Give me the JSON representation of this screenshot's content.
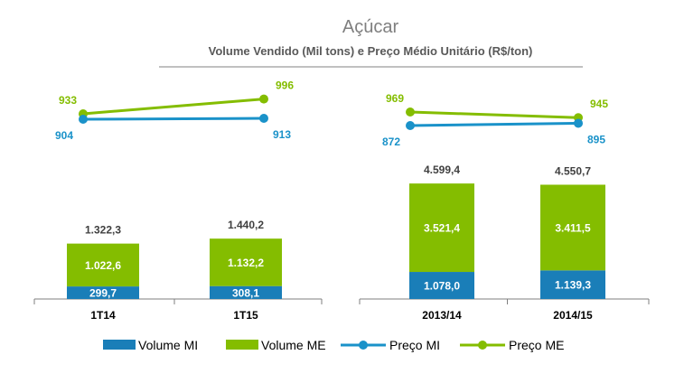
{
  "title": "Açúcar",
  "subtitle": "Volume Vendido (Mil tons) e Preço Médio Unitário (R$/ton)",
  "colors": {
    "volume_mi": "#1a7eb8",
    "volume_me": "#84bd00",
    "preco_mi": "#1a92c9",
    "preco_me": "#84bd00",
    "label_dark": "#404040",
    "axis": "#7f7f7f"
  },
  "legend": [
    {
      "label": "Volume MI",
      "kind": "bar",
      "color": "#1a7eb8"
    },
    {
      "label": "Volume ME",
      "kind": "bar",
      "color": "#84bd00"
    },
    {
      "label": "Preço MI",
      "kind": "line",
      "color": "#1a92c9"
    },
    {
      "label": "Preço ME",
      "kind": "line",
      "color": "#84bd00"
    }
  ],
  "chart_data": [
    {
      "type": "bar",
      "stacked": true,
      "categories": [
        "1T14",
        "1T15"
      ],
      "series": [
        {
          "name": "Volume MI",
          "values": [
            299.7,
            308.1
          ],
          "labels": [
            "299,7",
            "308,1"
          ]
        },
        {
          "name": "Volume ME",
          "values": [
            1022.6,
            1132.2
          ],
          "labels": [
            "1.022,6",
            "1.132,2"
          ]
        }
      ],
      "totals": [
        1322.3,
        1440.2
      ],
      "total_labels": [
        "1.322,3",
        "1.440,2"
      ],
      "lines": [
        {
          "name": "Preço ME",
          "values": [
            933,
            996
          ],
          "labels": [
            "933",
            "996"
          ]
        },
        {
          "name": "Preço MI",
          "values": [
            904,
            913
          ],
          "labels": [
            "904",
            "913"
          ]
        }
      ]
    },
    {
      "type": "bar",
      "stacked": true,
      "categories": [
        "2013/14",
        "2014/15"
      ],
      "series": [
        {
          "name": "Volume MI",
          "values": [
            1078.0,
            1139.3
          ],
          "labels": [
            "1.078,0",
            "1.139,3"
          ]
        },
        {
          "name": "Volume ME",
          "values": [
            3521.4,
            3411.5
          ],
          "labels": [
            "3.521,4",
            "3.411,5"
          ]
        }
      ],
      "totals": [
        4599.4,
        4550.7
      ],
      "total_labels": [
        "4.599,4",
        "4.550,7"
      ],
      "lines": [
        {
          "name": "Preço ME",
          "values": [
            969,
            945
          ],
          "labels": [
            "969",
            "945"
          ]
        },
        {
          "name": "Preço MI",
          "values": [
            872,
            895
          ],
          "labels": [
            "872",
            "895"
          ]
        }
      ]
    }
  ]
}
